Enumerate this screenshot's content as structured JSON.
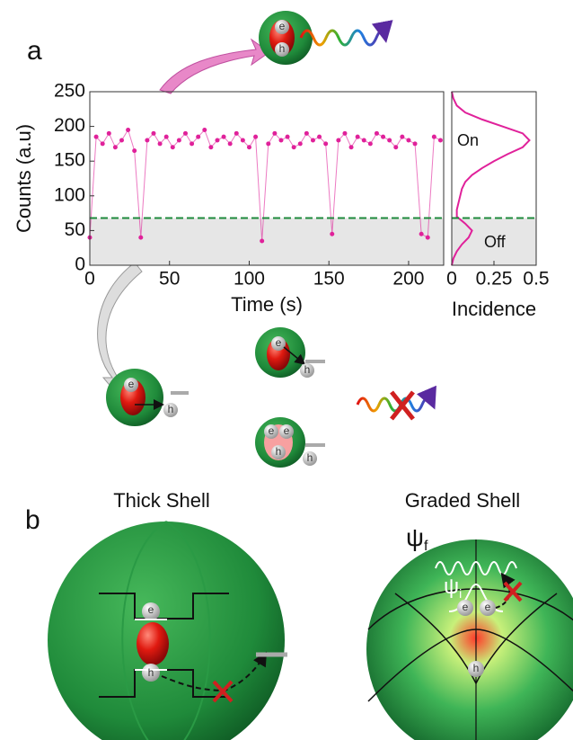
{
  "panel_labels": [
    "a",
    "b"
  ],
  "chart_data": [
    {
      "type": "scatter",
      "xlabel": "Time (s)",
      "ylabel": "Counts (a.u)",
      "color": "#e0219a",
      "xlim": [
        0,
        222
      ],
      "ylim": [
        0,
        250
      ],
      "xticks": [
        0,
        50,
        100,
        150,
        200
      ],
      "yticks": [
        0,
        50,
        100,
        150,
        200,
        250
      ],
      "threshold": 68,
      "threshold_color": "#1e8a3c",
      "x": [
        0,
        4,
        8,
        12,
        16,
        20,
        24,
        28,
        32,
        36,
        40,
        44,
        48,
        52,
        56,
        60,
        64,
        68,
        72,
        76,
        80,
        84,
        88,
        92,
        96,
        100,
        104,
        108,
        112,
        116,
        120,
        124,
        128,
        132,
        136,
        140,
        144,
        148,
        152,
        156,
        160,
        164,
        168,
        172,
        176,
        180,
        184,
        188,
        192,
        196,
        200,
        204,
        208,
        212,
        216,
        220
      ],
      "values": [
        40,
        185,
        175,
        190,
        170,
        180,
        195,
        165,
        40,
        180,
        190,
        175,
        185,
        170,
        180,
        190,
        175,
        185,
        195,
        170,
        180,
        185,
        175,
        190,
        180,
        170,
        185,
        35,
        175,
        190,
        180,
        185,
        170,
        175,
        190,
        180,
        185,
        175,
        45,
        180,
        190,
        170,
        185,
        180,
        175,
        190,
        185,
        180,
        170,
        185,
        180,
        175,
        45,
        40,
        185,
        180
      ]
    },
    {
      "type": "line",
      "xlabel": "Incidence",
      "color": "#e0219a",
      "xlim": [
        0,
        0.5
      ],
      "xticks": [
        0,
        0.25,
        0.5
      ],
      "ylim": [
        0,
        250
      ],
      "threshold": 68,
      "threshold_color": "#1e8a3c",
      "y": [
        0,
        10,
        20,
        30,
        40,
        50,
        60,
        70,
        80,
        90,
        100,
        110,
        120,
        130,
        140,
        150,
        160,
        170,
        180,
        190,
        200,
        210,
        220,
        230,
        240,
        250
      ],
      "values": [
        0,
        0.01,
        0.03,
        0.06,
        0.1,
        0.12,
        0.08,
        0.03,
        0.03,
        0.04,
        0.05,
        0.06,
        0.08,
        0.12,
        0.18,
        0.25,
        0.33,
        0.42,
        0.46,
        0.42,
        0.3,
        0.18,
        0.08,
        0.03,
        0.01,
        0
      ],
      "annotations": [
        "On",
        "Off"
      ]
    }
  ],
  "diagram": {
    "electron": "e",
    "hole": "h",
    "shells": [
      "Thick Shell",
      "Graded Shell"
    ],
    "psi_f": {
      "symbol": "ψ",
      "sub": "f"
    },
    "psi_i": {
      "symbol": "ψ",
      "sub": "i"
    }
  }
}
